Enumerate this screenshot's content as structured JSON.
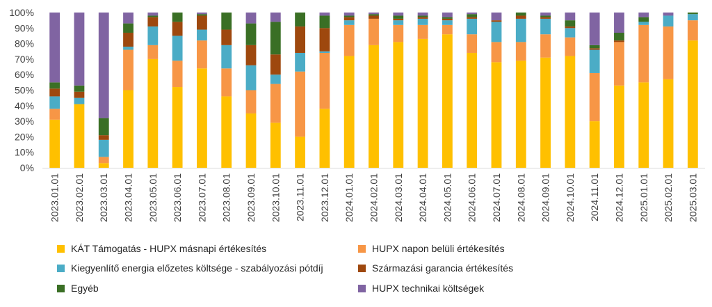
{
  "chart_data": {
    "type": "bar",
    "stacked": true,
    "percent": true,
    "title": "",
    "xlabel": "",
    "ylabel": "",
    "ylim": [
      0,
      100
    ],
    "y_ticks": [
      "0%",
      "10%",
      "20%",
      "30%",
      "40%",
      "50%",
      "60%",
      "70%",
      "80%",
      "90%",
      "100%"
    ],
    "grid": false,
    "legend_position": "bottom",
    "categories": [
      "2023.01.01",
      "2023.02.01",
      "2023.03.01",
      "2023.04.01",
      "2023.05.01",
      "2023.06.01",
      "2023.07.01",
      "2023.08.01",
      "2023.09.01",
      "2023.10.01",
      "2023.11.01",
      "2023.12.01",
      "2024.01.01",
      "2024.02.01",
      "2024.03.01",
      "2024.04.01",
      "2024.05.01",
      "2024.06.01",
      "2024.07.01",
      "2024.08.01",
      "2024.09.01",
      "2024.10.01",
      "2024.11.01",
      "2024.12.01",
      "2025.01.01",
      "2025.02.01",
      "2025.03.01"
    ],
    "series": [
      {
        "name": "KÁT Támogatás - HUPX másnapi értékesítés",
        "color": "#FFC000",
        "values": [
          31,
          41,
          3,
          50,
          70,
          52,
          64,
          46,
          35,
          29,
          20,
          38,
          72,
          79,
          81,
          83,
          86,
          74,
          68,
          69,
          71,
          72,
          30,
          53,
          55,
          57,
          82
        ]
      },
      {
        "name": "HUPX napon belüli értékesítés",
        "color": "#F79646",
        "values": [
          7,
          0,
          4,
          26,
          9,
          17,
          18,
          18,
          15,
          25,
          42,
          36,
          20,
          17,
          11,
          9,
          6,
          12,
          13,
          12,
          15,
          12,
          31,
          28,
          37,
          34,
          13
        ]
      },
      {
        "name": "Kiegyenlítő energia előzetes költsége - szabályozási pótdíj",
        "color": "#4BACC6",
        "values": [
          8,
          4,
          11,
          2,
          12,
          16,
          7,
          15,
          16,
          6,
          12,
          1,
          3,
          0,
          3,
          4,
          3,
          10,
          13,
          15,
          10,
          6,
          15,
          0,
          2,
          7,
          4
        ]
      },
      {
        "name": "Származási garancia értékesítés",
        "color": "#9E480E",
        "values": [
          5,
          4,
          3,
          9,
          6,
          9,
          9,
          10,
          13,
          13,
          17,
          15,
          2,
          2,
          1,
          1,
          1,
          1,
          1,
          2,
          1,
          1,
          1,
          1,
          0,
          0,
          0
        ]
      },
      {
        "name": "Egyéb",
        "color": "#3A6F25",
        "values": [
          4,
          4,
          11,
          6,
          1,
          6,
          1,
          11,
          14,
          21,
          9,
          8,
          1,
          1,
          2,
          1,
          1,
          2,
          0,
          2,
          1,
          4,
          2,
          5,
          3,
          0,
          1
        ]
      },
      {
        "name": "HUPX technikai költségek",
        "color": "#8064A2",
        "values": [
          45,
          47,
          68,
          7,
          2,
          0,
          1,
          0,
          7,
          6,
          0,
          2,
          2,
          1,
          2,
          2,
          3,
          1,
          5,
          0,
          2,
          5,
          21,
          13,
          3,
          2,
          0
        ]
      }
    ]
  }
}
